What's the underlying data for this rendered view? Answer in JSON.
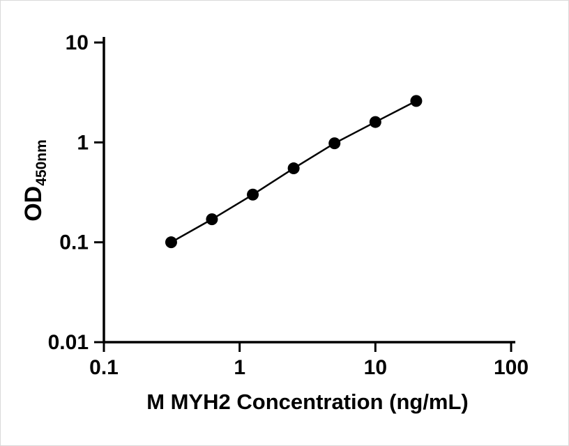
{
  "chart_data": {
    "type": "scatter",
    "title": "",
    "xlabel": "M MYH2 Concentration (ng/mL)",
    "ylabel_main": "OD",
    "ylabel_sub": "450nm",
    "xscale": "log",
    "yscale": "log",
    "xlim": [
      0.1,
      100
    ],
    "ylim": [
      0.01,
      10
    ],
    "x": [
      0.313,
      0.625,
      1.25,
      2.5,
      5,
      10,
      20
    ],
    "y": [
      0.1,
      0.17,
      0.3,
      0.55,
      0.98,
      1.6,
      2.6
    ],
    "x_ticks": {
      "values": [
        0.1,
        1,
        10,
        100
      ],
      "labels": [
        "0.1",
        "1",
        "10",
        "100"
      ]
    },
    "y_ticks": {
      "values": [
        0.01,
        0.1,
        1,
        10
      ],
      "labels": [
        "0.01",
        "0.1",
        "1",
        "10"
      ]
    },
    "line_color": "#000000",
    "marker_color": "#000000",
    "marker": "circle",
    "grid": false,
    "legend": "none",
    "background": "#ffffff"
  }
}
